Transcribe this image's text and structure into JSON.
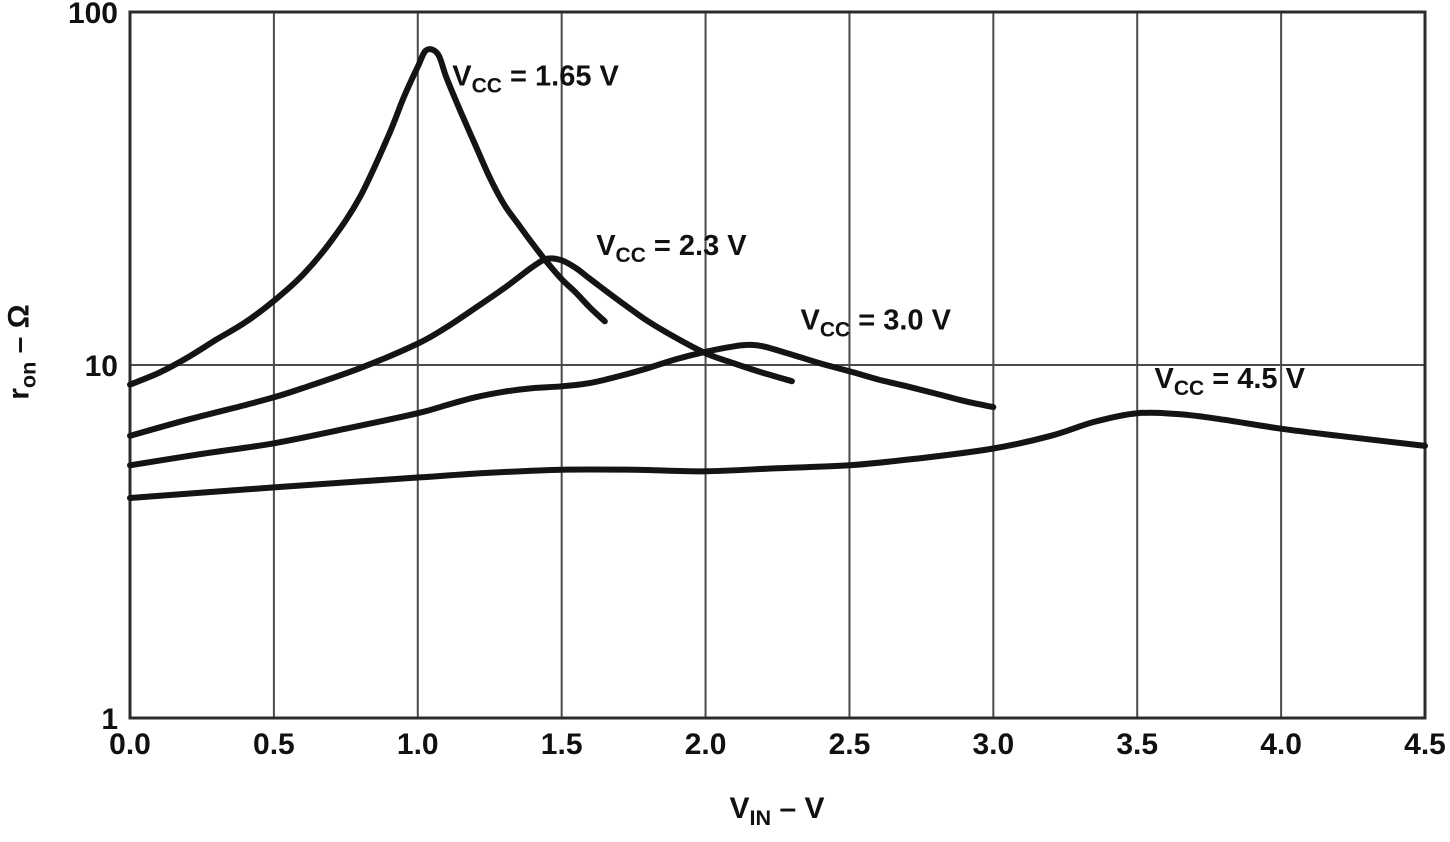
{
  "chart_data": {
    "type": "line",
    "title": "",
    "xlabel": {
      "base": "V",
      "sub": "IN",
      "unit": " – V"
    },
    "ylabel": {
      "base": "r",
      "sub": "on",
      "unit": " – Ω"
    },
    "x_axis": {
      "min": 0,
      "max": 4.5,
      "scale": "linear",
      "ticks": [
        0,
        0.5,
        1,
        1.5,
        2,
        2.5,
        3,
        3.5,
        4,
        4.5
      ],
      "tick_labels": [
        "0.0",
        "0.5",
        "1.0",
        "1.5",
        "2.0",
        "2.5",
        "3.0",
        "3.5",
        "4.0",
        "4.5"
      ]
    },
    "y_axis": {
      "min": 1,
      "max": 100,
      "scale": "log",
      "ticks": [
        1,
        10,
        100
      ],
      "tick_labels": [
        "1",
        "10",
        "100"
      ]
    },
    "grid": {
      "vertical": true,
      "horizontal_at": [
        10
      ],
      "color": "#4a4a4a",
      "border_color": "#2b2b2b"
    },
    "line_color": "#141414",
    "legend_position": "inline-labels",
    "series": [
      {
        "name": "VCC = 1.65 V",
        "label": {
          "base": "V",
          "sub": "CC",
          "rest": " = 1.65 V"
        },
        "label_pos": [
          1.12,
          62
        ],
        "points": [
          [
            0,
            8.8
          ],
          [
            0.1,
            9.5
          ],
          [
            0.2,
            10.5
          ],
          [
            0.3,
            11.8
          ],
          [
            0.4,
            13.2
          ],
          [
            0.5,
            15.2
          ],
          [
            0.6,
            18
          ],
          [
            0.7,
            22.5
          ],
          [
            0.8,
            30
          ],
          [
            0.9,
            45
          ],
          [
            0.95,
            57
          ],
          [
            1.0,
            70
          ],
          [
            1.03,
            78
          ],
          [
            1.07,
            76
          ],
          [
            1.1,
            65
          ],
          [
            1.15,
            52
          ],
          [
            1.2,
            42
          ],
          [
            1.25,
            34
          ],
          [
            1.3,
            28.5
          ],
          [
            1.35,
            25
          ],
          [
            1.4,
            22
          ],
          [
            1.45,
            19.5
          ],
          [
            1.5,
            17.5
          ],
          [
            1.55,
            16
          ],
          [
            1.6,
            14.5
          ],
          [
            1.65,
            13.3
          ]
        ]
      },
      {
        "name": "VCC = 2.3 V",
        "label": {
          "base": "V",
          "sub": "CC",
          "rest": " = 2.3 V"
        },
        "label_pos": [
          1.62,
          20.5
        ],
        "points": [
          [
            0,
            6.3
          ],
          [
            0.2,
            7.0
          ],
          [
            0.4,
            7.7
          ],
          [
            0.5,
            8.1
          ],
          [
            0.6,
            8.6
          ],
          [
            0.8,
            9.8
          ],
          [
            1.0,
            11.5
          ],
          [
            1.1,
            12.8
          ],
          [
            1.2,
            14.5
          ],
          [
            1.3,
            16.5
          ],
          [
            1.4,
            19
          ],
          [
            1.45,
            20
          ],
          [
            1.5,
            19.8
          ],
          [
            1.55,
            18.8
          ],
          [
            1.6,
            17.5
          ],
          [
            1.7,
            15.2
          ],
          [
            1.8,
            13.3
          ],
          [
            1.9,
            11.9
          ],
          [
            2.0,
            10.8
          ],
          [
            2.1,
            10.1
          ],
          [
            2.2,
            9.5
          ],
          [
            2.3,
            9.0
          ]
        ]
      },
      {
        "name": "VCC = 3.0 V",
        "label": {
          "base": "V",
          "sub": "CC",
          "rest": " = 3.0 V"
        },
        "label_pos": [
          2.33,
          12.6
        ],
        "points": [
          [
            0,
            5.2
          ],
          [
            0.25,
            5.6
          ],
          [
            0.5,
            6.0
          ],
          [
            0.75,
            6.6
          ],
          [
            1.0,
            7.3
          ],
          [
            1.1,
            7.7
          ],
          [
            1.2,
            8.1
          ],
          [
            1.3,
            8.4
          ],
          [
            1.4,
            8.6
          ],
          [
            1.5,
            8.7
          ],
          [
            1.6,
            8.9
          ],
          [
            1.7,
            9.3
          ],
          [
            1.8,
            9.8
          ],
          [
            1.9,
            10.4
          ],
          [
            2.0,
            10.9
          ],
          [
            2.1,
            11.3
          ],
          [
            2.15,
            11.4
          ],
          [
            2.2,
            11.3
          ],
          [
            2.3,
            10.7
          ],
          [
            2.4,
            10.1
          ],
          [
            2.5,
            9.6
          ],
          [
            2.6,
            9.1
          ],
          [
            2.7,
            8.7
          ],
          [
            2.8,
            8.3
          ],
          [
            2.9,
            7.9
          ],
          [
            3.0,
            7.6
          ]
        ]
      },
      {
        "name": "VCC = 4.5 V",
        "label": {
          "base": "V",
          "sub": "CC",
          "rest": " = 4.5 V"
        },
        "label_pos": [
          3.56,
          8.6
        ],
        "points": [
          [
            0,
            4.2
          ],
          [
            0.25,
            4.35
          ],
          [
            0.5,
            4.5
          ],
          [
            0.75,
            4.65
          ],
          [
            1.0,
            4.8
          ],
          [
            1.25,
            4.95
          ],
          [
            1.5,
            5.05
          ],
          [
            1.75,
            5.05
          ],
          [
            2.0,
            5.0
          ],
          [
            2.25,
            5.1
          ],
          [
            2.5,
            5.2
          ],
          [
            2.75,
            5.45
          ],
          [
            3.0,
            5.8
          ],
          [
            3.2,
            6.3
          ],
          [
            3.35,
            6.9
          ],
          [
            3.5,
            7.3
          ],
          [
            3.65,
            7.25
          ],
          [
            3.8,
            7.0
          ],
          [
            4.0,
            6.6
          ],
          [
            4.2,
            6.3
          ],
          [
            4.5,
            5.9
          ]
        ]
      }
    ]
  }
}
